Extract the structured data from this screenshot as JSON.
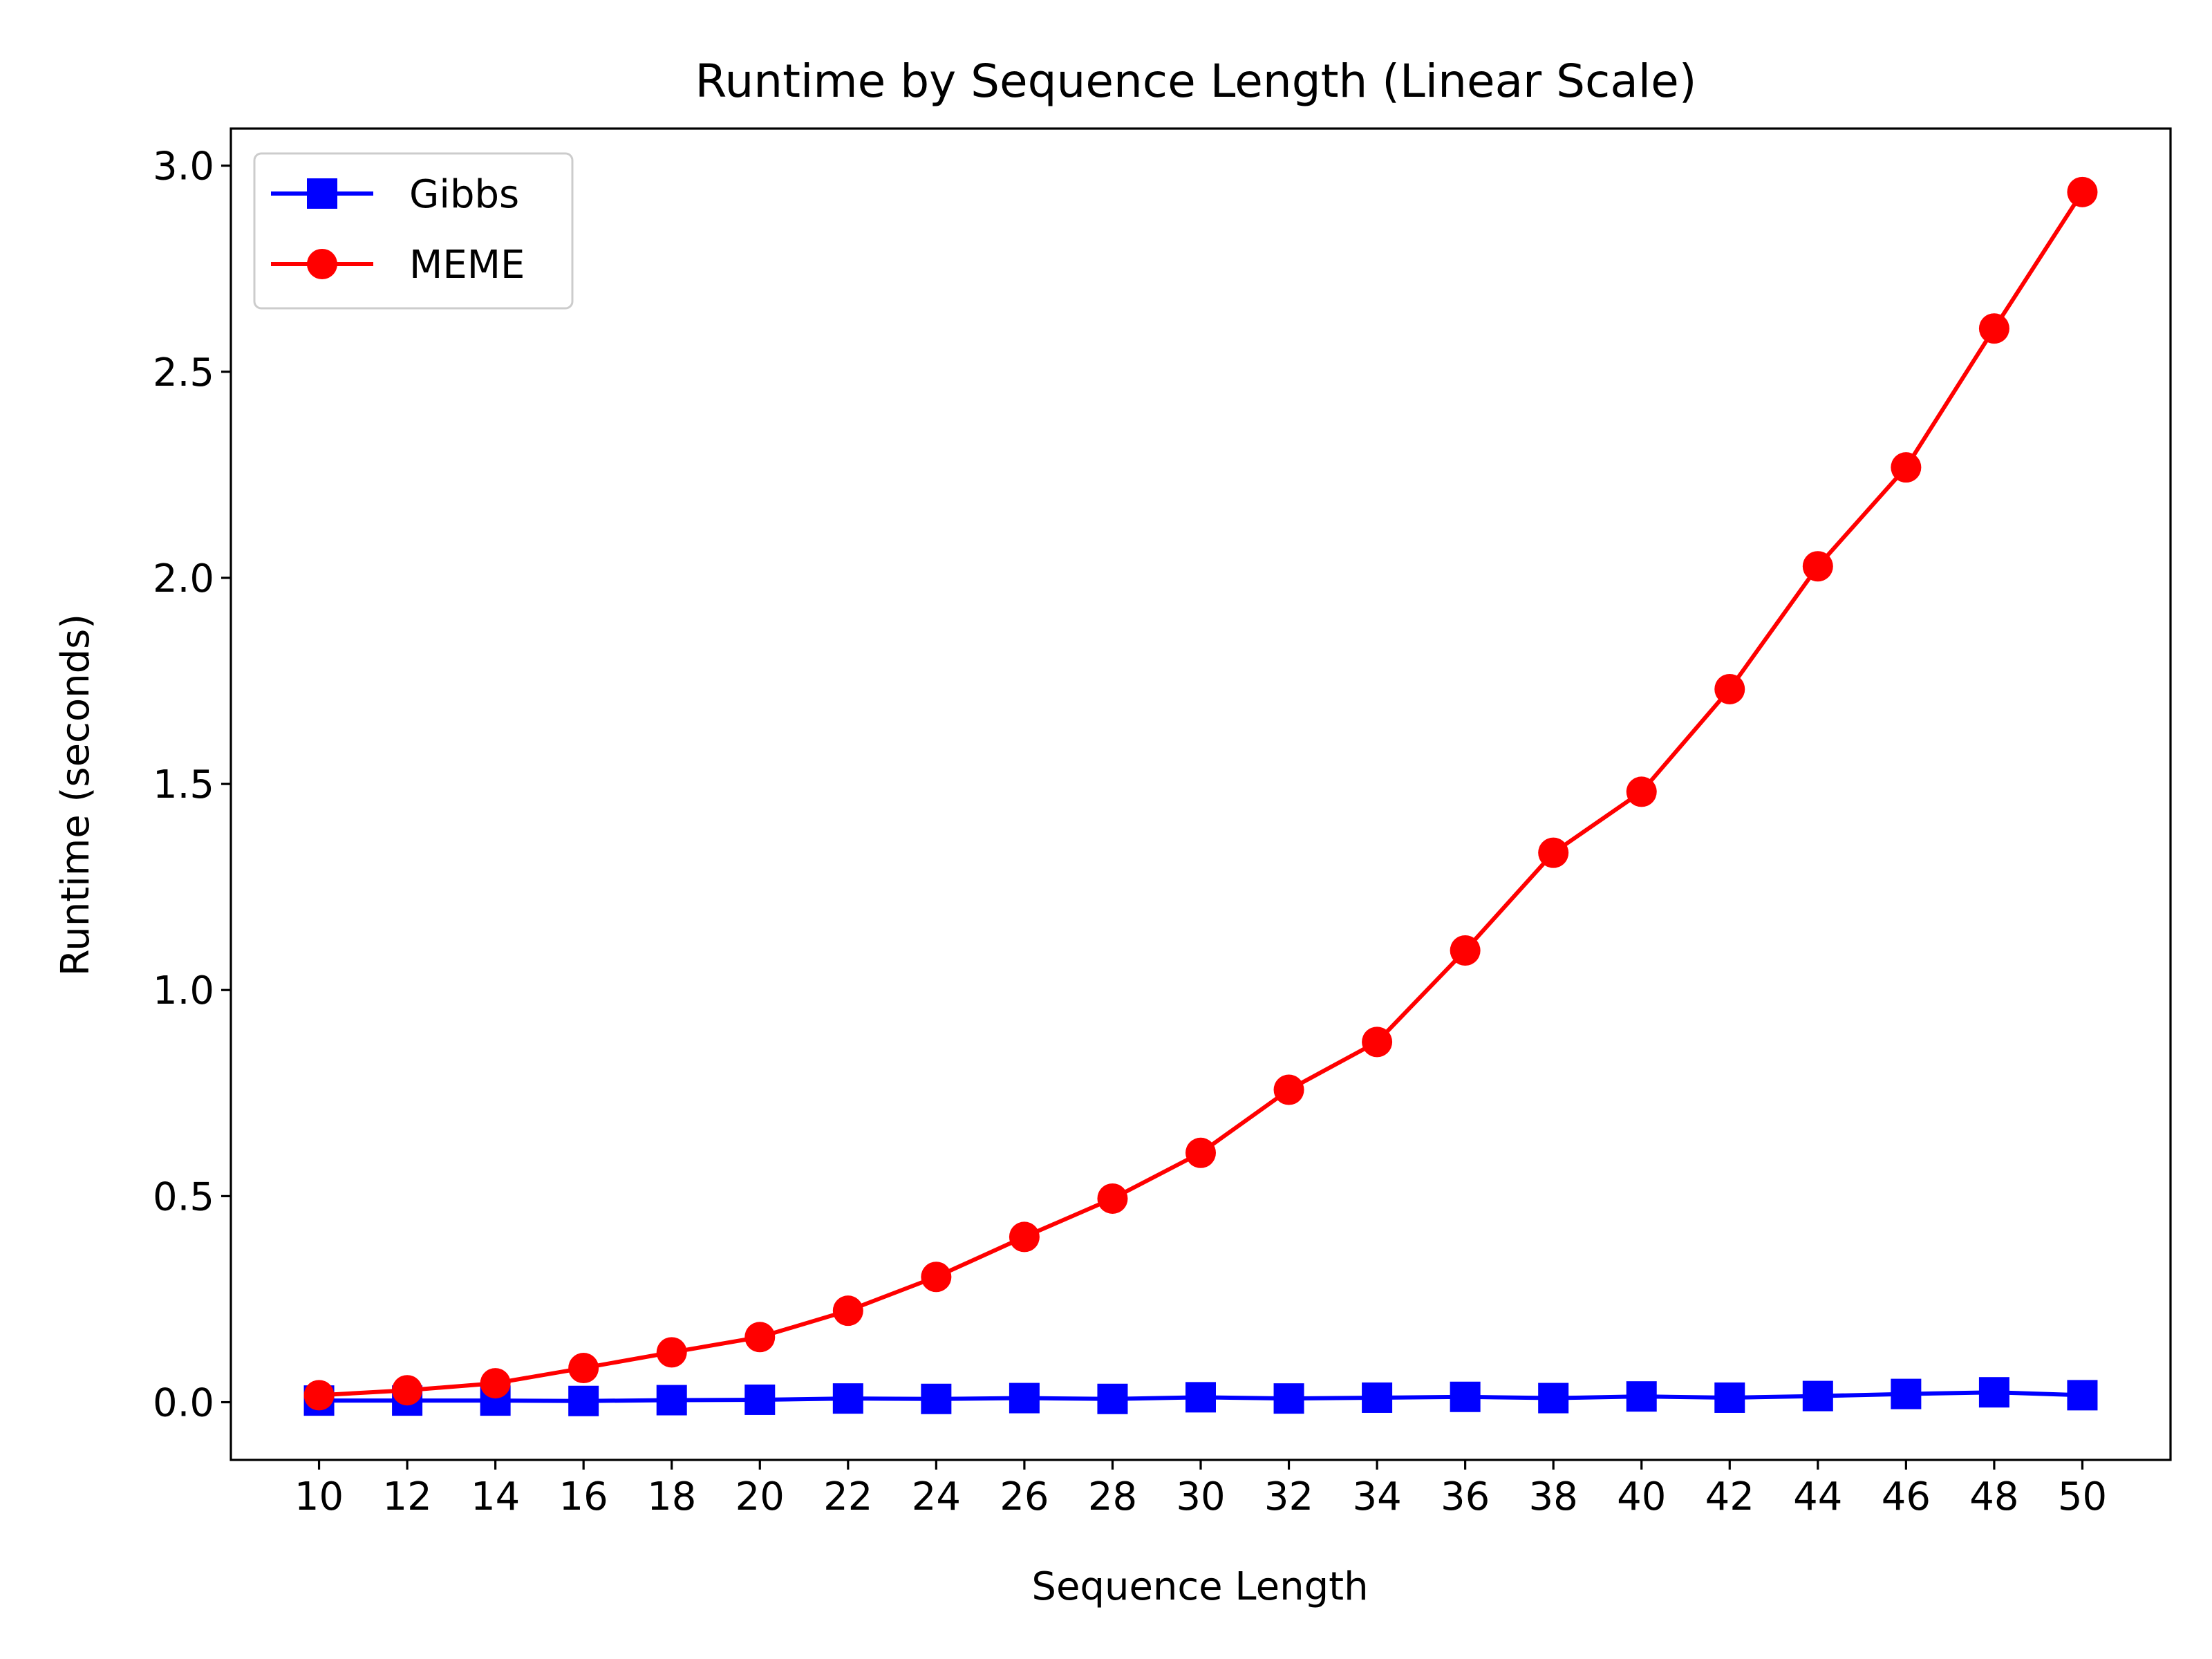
{
  "chart_data": {
    "type": "line",
    "title": "Runtime by Sequence Length (Linear Scale)",
    "xlabel": "Sequence Length",
    "ylabel": "Runtime (seconds)",
    "x": [
      10,
      12,
      14,
      16,
      18,
      20,
      22,
      24,
      26,
      28,
      30,
      32,
      34,
      36,
      38,
      40,
      42,
      44,
      46,
      48,
      50
    ],
    "x_tick_labels": [
      "10",
      "12",
      "14",
      "16",
      "18",
      "20",
      "22",
      "24",
      "26",
      "28",
      "30",
      "32",
      "34",
      "36",
      "38",
      "40",
      "42",
      "44",
      "46",
      "48",
      "50"
    ],
    "xlim": [
      8,
      52
    ],
    "ylim": [
      -0.14,
      3.09
    ],
    "y_ticks": [
      0.0,
      0.5,
      1.0,
      1.5,
      2.0,
      2.5,
      3.0
    ],
    "y_tick_labels": [
      "0.0",
      "0.5",
      "1.0",
      "1.5",
      "2.0",
      "2.5",
      "3.0"
    ],
    "grid": false,
    "legend_position": "top-left",
    "series": [
      {
        "name": "Gibbs",
        "color": "#0000ff",
        "marker": "square",
        "values": [
          0.004,
          0.004,
          0.004,
          0.003,
          0.005,
          0.006,
          0.009,
          0.008,
          0.01,
          0.008,
          0.012,
          0.009,
          0.011,
          0.013,
          0.01,
          0.014,
          0.011,
          0.015,
          0.02,
          0.024,
          0.017
        ]
      },
      {
        "name": "MEME",
        "color": "#ff0000",
        "marker": "circle",
        "values": [
          0.017,
          0.029,
          0.046,
          0.083,
          0.121,
          0.158,
          0.222,
          0.304,
          0.401,
          0.494,
          0.605,
          0.758,
          0.874,
          1.096,
          1.333,
          1.481,
          1.73,
          2.028,
          2.268,
          2.605,
          2.936
        ]
      }
    ]
  }
}
